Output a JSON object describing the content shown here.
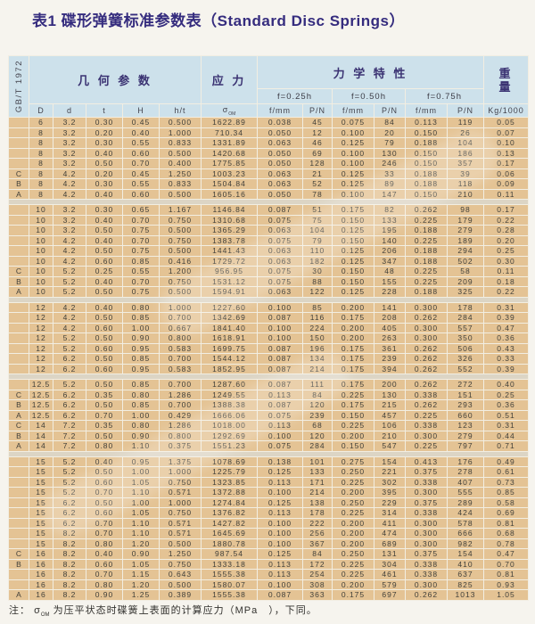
{
  "title": "表1  碟形弹簧标准参数表（Standard Disc Springs）",
  "colors": {
    "page-bg": "#f6f4ee",
    "title-color": "#352c7e",
    "header-bg": "#cde1eb",
    "header-text": "#3a3272",
    "row-bg": "#e4c394",
    "row-text": "#403f39",
    "grid": "#f2eee2",
    "spacer-bg": "#dcd5c5",
    "note-text": "#33322f"
  },
  "table": {
    "standard": "GB/T 1972",
    "header": {
      "geometry": "几 何 参 数",
      "stress": "应 力",
      "mechanics": "力 学 特 性",
      "weight_top": "重",
      "weight_bottom": "量",
      "deflections": [
        "f=0.25h",
        "f=0.50h",
        "f=0.75h"
      ],
      "geometry_columns": [
        "D",
        "d",
        "t",
        "H",
        "h/t"
      ],
      "sigma": "σ",
      "sigma_sub": "OM",
      "sub_columns": [
        "f/mm",
        "P/N"
      ],
      "weight_unit": "Kg/1000"
    },
    "groups": [
      {
        "rows": [
          [
            "",
            "6",
            "3.2",
            "0.30",
            "0.45",
            "0.500",
            "1622.89",
            "0.038",
            "45",
            "0.075",
            "84",
            "0.113",
            "119",
            "0.05"
          ],
          [
            "",
            "8",
            "3.2",
            "0.20",
            "0.40",
            "1.000",
            "710.34",
            "0.050",
            "12",
            "0.100",
            "20",
            "0.150",
            "26",
            "0.07"
          ],
          [
            "",
            "8",
            "3.2",
            "0.30",
            "0.55",
            "0.833",
            "1331.89",
            "0.063",
            "46",
            "0.125",
            "79",
            "0.188",
            "104",
            "0.10"
          ],
          [
            "",
            "8",
            "3.2",
            "0.40",
            "0.60",
            "0.500",
            "1420.68",
            "0.050",
            "69",
            "0.100",
            "130",
            "0.150",
            "186",
            "0.13"
          ],
          [
            "",
            "8",
            "3.2",
            "0.50",
            "0.70",
            "0.400",
            "1775.85",
            "0.050",
            "128",
            "0.100",
            "246",
            "0.150",
            "357",
            "0.17"
          ],
          [
            "C",
            "8",
            "4.2",
            "0.20",
            "0.45",
            "1.250",
            "1003.23",
            "0.063",
            "21",
            "0.125",
            "33",
            "0.188",
            "39",
            "0.06"
          ],
          [
            "B",
            "8",
            "4.2",
            "0.30",
            "0.55",
            "0.833",
            "1504.84",
            "0.063",
            "52",
            "0.125",
            "89",
            "0.188",
            "118",
            "0.09"
          ],
          [
            "A",
            "8",
            "4.2",
            "0.40",
            "0.60",
            "0.500",
            "1605.16",
            "0.050",
            "78",
            "0.100",
            "147",
            "0.150",
            "210",
            "0.11"
          ]
        ]
      },
      {
        "rows": [
          [
            "",
            "10",
            "3.2",
            "0.30",
            "0.65",
            "1.167",
            "1146.84",
            "0.087",
            "51",
            "0.175",
            "82",
            "0.262",
            "98",
            "0.17"
          ],
          [
            "",
            "10",
            "3.2",
            "0.40",
            "0.70",
            "0.750",
            "1310.68",
            "0.075",
            "75",
            "0.150",
            "133",
            "0.225",
            "179",
            "0.22"
          ],
          [
            "",
            "10",
            "3.2",
            "0.50",
            "0.75",
            "0.500",
            "1365.29",
            "0.063",
            "104",
            "0.125",
            "195",
            "0.188",
            "279",
            "0.28"
          ],
          [
            "",
            "10",
            "4.2",
            "0.40",
            "0.70",
            "0.750",
            "1383.78",
            "0.075",
            "79",
            "0.150",
            "140",
            "0.225",
            "189",
            "0.20"
          ],
          [
            "",
            "10",
            "4.2",
            "0.50",
            "0.75",
            "0.500",
            "1441.43",
            "0.063",
            "110",
            "0.125",
            "206",
            "0.188",
            "294",
            "0.25"
          ],
          [
            "",
            "10",
            "4.2",
            "0.60",
            "0.85",
            "0.416",
            "1729.72",
            "0.063",
            "182",
            "0.125",
            "347",
            "0.188",
            "502",
            "0.30"
          ],
          [
            "C",
            "10",
            "5.2",
            "0.25",
            "0.55",
            "1.200",
            "956.95",
            "0.075",
            "30",
            "0.150",
            "48",
            "0.225",
            "58",
            "0.11"
          ],
          [
            "B",
            "10",
            "5.2",
            "0.40",
            "0.70",
            "0.750",
            "1531.12",
            "0.075",
            "88",
            "0.150",
            "155",
            "0.225",
            "209",
            "0.18"
          ],
          [
            "A",
            "10",
            "5.2",
            "0.50",
            "0.75",
            "0.500",
            "1594.91",
            "0.063",
            "122",
            "0.125",
            "228",
            "0.188",
            "325",
            "0.22"
          ]
        ]
      },
      {
        "rows": [
          [
            "",
            "12",
            "4.2",
            "0.40",
            "0.80",
            "1.000",
            "1227.60",
            "0.100",
            "85",
            "0.200",
            "141",
            "0.300",
            "178",
            "0.31"
          ],
          [
            "",
            "12",
            "4.2",
            "0.50",
            "0.85",
            "0.700",
            "1342.69",
            "0.087",
            "116",
            "0.175",
            "208",
            "0.262",
            "284",
            "0.39"
          ],
          [
            "",
            "12",
            "4.2",
            "0.60",
            "1.00",
            "0.667",
            "1841.40",
            "0.100",
            "224",
            "0.200",
            "405",
            "0.300",
            "557",
            "0.47"
          ],
          [
            "",
            "12",
            "5.2",
            "0.50",
            "0.90",
            "0.800",
            "1618.91",
            "0.100",
            "150",
            "0.200",
            "263",
            "0.300",
            "350",
            "0.36"
          ],
          [
            "",
            "12",
            "5.2",
            "0.60",
            "0.95",
            "0.583",
            "1699.75",
            "0.087",
            "196",
            "0.175",
            "361",
            "0.262",
            "506",
            "0.43"
          ],
          [
            "",
            "12",
            "6.2",
            "0.50",
            "0.85",
            "0.700",
            "1544.12",
            "0.087",
            "134",
            "0.175",
            "239",
            "0.262",
            "326",
            "0.33"
          ],
          [
            "",
            "12",
            "6.2",
            "0.60",
            "0.95",
            "0.583",
            "1852.95",
            "0.087",
            "214",
            "0.175",
            "394",
            "0.262",
            "552",
            "0.39"
          ]
        ]
      },
      {
        "rows": [
          [
            "",
            "12.5",
            "5.2",
            "0.50",
            "0.85",
            "0.700",
            "1287.60",
            "0.087",
            "111",
            "0.175",
            "200",
            "0.262",
            "272",
            "0.40"
          ],
          [
            "C",
            "12.5",
            "6.2",
            "0.35",
            "0.80",
            "1.286",
            "1249.55",
            "0.113",
            "84",
            "0.225",
            "130",
            "0.338",
            "151",
            "0.25"
          ],
          [
            "B",
            "12.5",
            "6.2",
            "0.50",
            "0.85",
            "0.700",
            "1388.38",
            "0.087",
            "120",
            "0.175",
            "215",
            "0.262",
            "293",
            "0.36"
          ],
          [
            "A",
            "12.5",
            "6.2",
            "0.70",
            "1.00",
            "0.429",
            "1666.06",
            "0.075",
            "239",
            "0.150",
            "457",
            "0.225",
            "660",
            "0.51"
          ],
          [
            "C",
            "14",
            "7.2",
            "0.35",
            "0.80",
            "1.286",
            "1018.00",
            "0.113",
            "68",
            "0.225",
            "106",
            "0.338",
            "123",
            "0.31"
          ],
          [
            "B",
            "14",
            "7.2",
            "0.50",
            "0.90",
            "0.800",
            "1292.69",
            "0.100",
            "120",
            "0.200",
            "210",
            "0.300",
            "279",
            "0.44"
          ],
          [
            "A",
            "14",
            "7.2",
            "0.80",
            "1.10",
            "0.375",
            "1551.23",
            "0.075",
            "284",
            "0.150",
            "547",
            "0.225",
            "797",
            "0.71"
          ]
        ]
      },
      {
        "rows": [
          [
            "",
            "15",
            "5.2",
            "0.40",
            "0.95",
            "1.375",
            "1078.69",
            "0.138",
            "101",
            "0.275",
            "154",
            "0.413",
            "176",
            "0.49"
          ],
          [
            "",
            "15",
            "5.2",
            "0.50",
            "1.00",
            "1.000",
            "1225.79",
            "0.125",
            "133",
            "0.250",
            "221",
            "0.375",
            "278",
            "0.61"
          ],
          [
            "",
            "15",
            "5.2",
            "0.60",
            "1.05",
            "0.750",
            "1323.85",
            "0.113",
            "171",
            "0.225",
            "302",
            "0.338",
            "407",
            "0.73"
          ],
          [
            "",
            "15",
            "5.2",
            "0.70",
            "1.10",
            "0.571",
            "1372.88",
            "0.100",
            "214",
            "0.200",
            "395",
            "0.300",
            "555",
            "0.85"
          ],
          [
            "",
            "15",
            "6.2",
            "0.50",
            "1.00",
            "1.000",
            "1274.84",
            "0.125",
            "138",
            "0.250",
            "229",
            "0.375",
            "289",
            "0.58"
          ],
          [
            "",
            "15",
            "6.2",
            "0.60",
            "1.05",
            "0.750",
            "1376.82",
            "0.113",
            "178",
            "0.225",
            "314",
            "0.338",
            "424",
            "0.69"
          ],
          [
            "",
            "15",
            "6.2",
            "0.70",
            "1.10",
            "0.571",
            "1427.82",
            "0.100",
            "222",
            "0.200",
            "411",
            "0.300",
            "578",
            "0.81"
          ],
          [
            "",
            "15",
            "8.2",
            "0.70",
            "1.10",
            "0.571",
            "1645.69",
            "0.100",
            "256",
            "0.200",
            "474",
            "0.300",
            "666",
            "0.68"
          ],
          [
            "",
            "15",
            "8.2",
            "0.80",
            "1.20",
            "0.500",
            "1880.78",
            "0.100",
            "367",
            "0.200",
            "689",
            "0.300",
            "982",
            "0.78"
          ]
        ]
      },
      {
        "rows": [
          [
            "C",
            "16",
            "8.2",
            "0.40",
            "0.90",
            "1.250",
            "987.54",
            "0.125",
            "84",
            "0.250",
            "131",
            "0.375",
            "154",
            "0.47"
          ],
          [
            "B",
            "16",
            "8.2",
            "0.60",
            "1.05",
            "0.750",
            "1333.18",
            "0.113",
            "172",
            "0.225",
            "304",
            "0.338",
            "410",
            "0.70"
          ],
          [
            "",
            "16",
            "8.2",
            "0.70",
            "1.15",
            "0.643",
            "1555.38",
            "0.113",
            "254",
            "0.225",
            "461",
            "0.338",
            "637",
            "0.81"
          ],
          [
            "",
            "16",
            "8.2",
            "0.80",
            "1.20",
            "0.500",
            "1580.07",
            "0.100",
            "308",
            "0.200",
            "579",
            "0.300",
            "825",
            "0.93"
          ],
          [
            "A",
            "16",
            "8.2",
            "0.90",
            "1.25",
            "0.389",
            "1555.38",
            "0.087",
            "363",
            "0.175",
            "697",
            "0.262",
            "1013",
            "1.05"
          ]
        ]
      }
    ]
  },
  "footnote": {
    "prefix": "注：",
    "sigma": "σ",
    "sigma_sub": "OM",
    "text": "为压平状态时碟簧上表面的计算应力（MPa　），下同。"
  }
}
